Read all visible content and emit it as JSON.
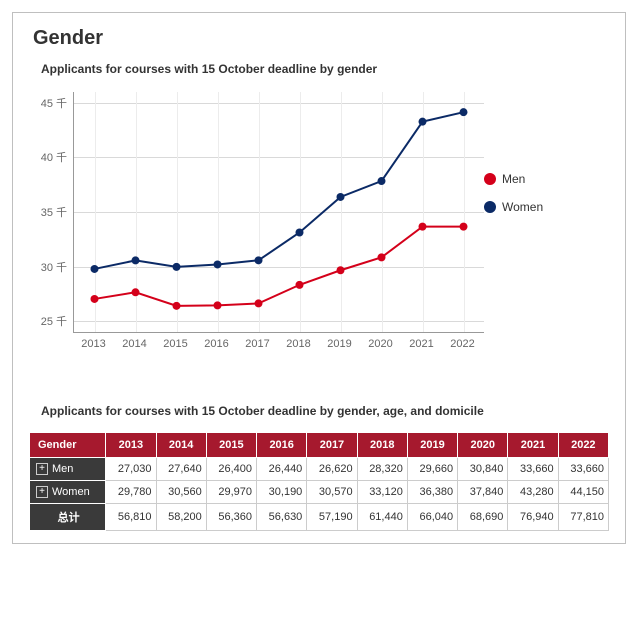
{
  "title": "Gender",
  "chart": {
    "subtitle": "Applicants for courses with 15 October deadline by gender",
    "type": "line",
    "x_categories": [
      "2013",
      "2014",
      "2015",
      "2016",
      "2017",
      "2018",
      "2019",
      "2020",
      "2021",
      "2022"
    ],
    "y_ticks": [
      25,
      30,
      35,
      40,
      45
    ],
    "y_unit_suffix": "千",
    "ylim": [
      24,
      46
    ],
    "series": [
      {
        "name": "Men",
        "color": "#d4001a",
        "marker": "circle",
        "values": [
          27.03,
          27.64,
          26.4,
          26.44,
          26.62,
          28.32,
          29.66,
          30.84,
          33.66,
          33.66
        ]
      },
      {
        "name": "Women",
        "color": "#0b2a66",
        "marker": "circle",
        "values": [
          29.78,
          30.56,
          29.97,
          30.19,
          30.57,
          33.12,
          36.38,
          37.84,
          43.28,
          44.15
        ]
      }
    ],
    "line_width": 2,
    "marker_radius": 4,
    "background_color": "#ffffff",
    "grid_color": "#d9d9d9",
    "axis_color": "#999999",
    "tick_fontsize": 11,
    "legend": {
      "position": "right",
      "items": [
        "Men",
        "Women"
      ]
    }
  },
  "table": {
    "subtitle": "Applicants for courses with 15 October deadline by gender, age, and domicile",
    "header_label": "Gender",
    "columns": [
      "2013",
      "2014",
      "2015",
      "2016",
      "2017",
      "2018",
      "2019",
      "2020",
      "2021",
      "2022"
    ],
    "rows": [
      {
        "label": "Men",
        "expandable": true,
        "cells": [
          "27,030",
          "27,640",
          "26,400",
          "26,440",
          "26,620",
          "28,320",
          "29,660",
          "30,840",
          "33,660",
          "33,660"
        ]
      },
      {
        "label": "Women",
        "expandable": true,
        "cells": [
          "29,780",
          "30,560",
          "29,970",
          "30,190",
          "30,570",
          "33,120",
          "36,380",
          "37,840",
          "43,280",
          "44,150"
        ]
      },
      {
        "label": "总计",
        "expandable": false,
        "total": true,
        "cells": [
          "56,810",
          "58,200",
          "56,360",
          "56,630",
          "57,190",
          "61,440",
          "66,040",
          "68,690",
          "76,940",
          "77,810"
        ]
      }
    ],
    "header_bg": "#a6192e",
    "header_fg": "#ffffff",
    "row_label_bg": "#3a3a3a",
    "row_label_fg": "#ffffff",
    "cell_bg": "#ffffff",
    "border_color": "#cccccc",
    "fontsize": 11
  }
}
